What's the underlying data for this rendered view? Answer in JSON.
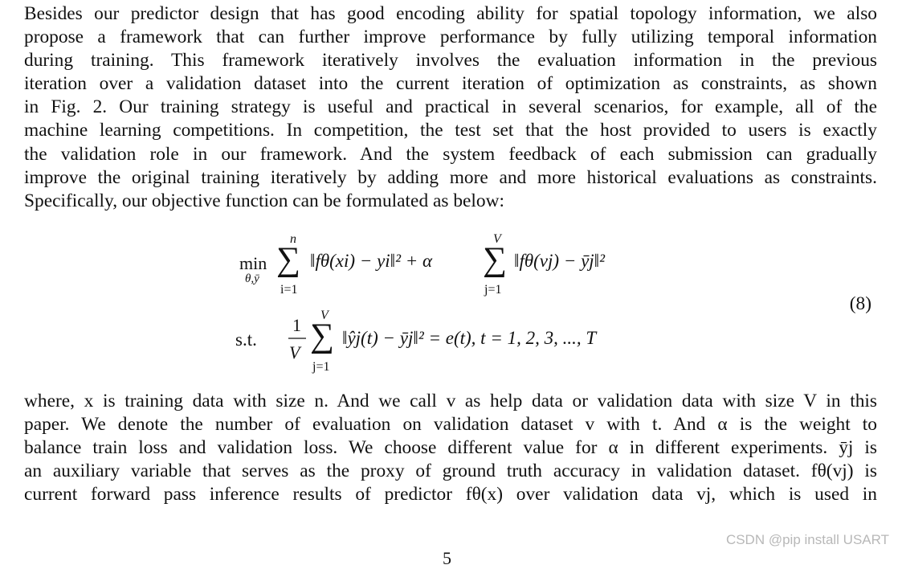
{
  "paragraph_1": {
    "lines": [
      "Besides our predictor design that has good encoding ability for spatial topology information, we also",
      "propose a framework that can further improve performance by fully utilizing temporal information",
      "during training.  This framework iteratively involves the evaluation information in the previous",
      "iteration over a validation dataset into the current iteration of optimization as constraints, as shown",
      "in Fig. 2. Our training strategy is useful and practical in several scenarios, for example, all of the",
      "machine learning competitions. In competition, the test set that the host provided to users is exactly",
      "the validation role in our framework. And the system feedback of each submission can gradually",
      "improve the original training iteratively by adding more and more historical evaluations as constraints.",
      "Specifically, our objective function can be formulated as below:"
    ]
  },
  "equation": {
    "line1": {
      "min": "min",
      "min_sub": "θ,ȳ",
      "sum1_upper": "n",
      "sum1_lower": "i=1",
      "term1": "‖fθ(xi) − yi‖² + α",
      "sum2_upper": "V",
      "sum2_lower": "j=1",
      "term2": "‖fθ(vj) − ȳj‖²"
    },
    "line2": {
      "st": "s.t.",
      "frac_num": "1",
      "frac_den": "V",
      "sum_upper": "V",
      "sum_lower": "j=1",
      "term": "‖ŷj(t) − ȳj‖² = e(t), t = 1, 2, 3, ..., T"
    },
    "number": "(8)"
  },
  "paragraph_2": {
    "lines": [
      "where, x is training data with size n. And we call v as help data or validation data with size V in this",
      "paper. We denote the number of evaluation on validation dataset v with t. And α is the weight to",
      "balance train loss and validation loss. We choose different value for α in different experiments. ȳj is",
      "an auxiliary variable that serves as the proxy of ground truth accuracy in validation dataset. fθ(vj) is",
      "current forward pass inference results of predictor fθ(x) over validation data vj, which is used in"
    ]
  },
  "watermark": "CSDN @pip install USART",
  "page_number": "5"
}
